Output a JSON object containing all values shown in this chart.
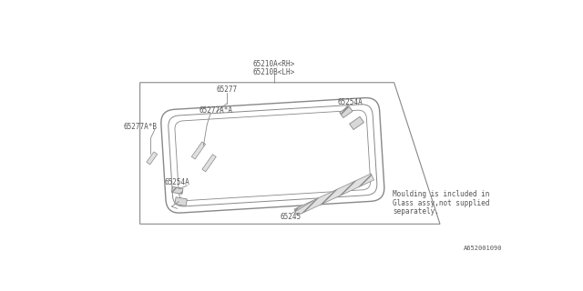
{
  "bg_color": "#ffffff",
  "line_color": "#888888",
  "text_color": "#555555",
  "fig_width": 6.4,
  "fig_height": 3.2,
  "dpi": 100,
  "label_top1": "65210A<RH>",
  "label_top2": "65210B<LH>",
  "label_65277": "65277",
  "label_65277A_A": "65277A*A",
  "label_65277A_B": "65277A*B",
  "label_65254A_tr": "65254A",
  "label_65254A_bl": "65254A",
  "label_65245": "65245",
  "note_line1": "Moulding is included in",
  "note_line2": "Glass assy,not supplied",
  "note_line3": "separately.",
  "part_id_bottom": "A652001090",
  "font_size": 5.5
}
